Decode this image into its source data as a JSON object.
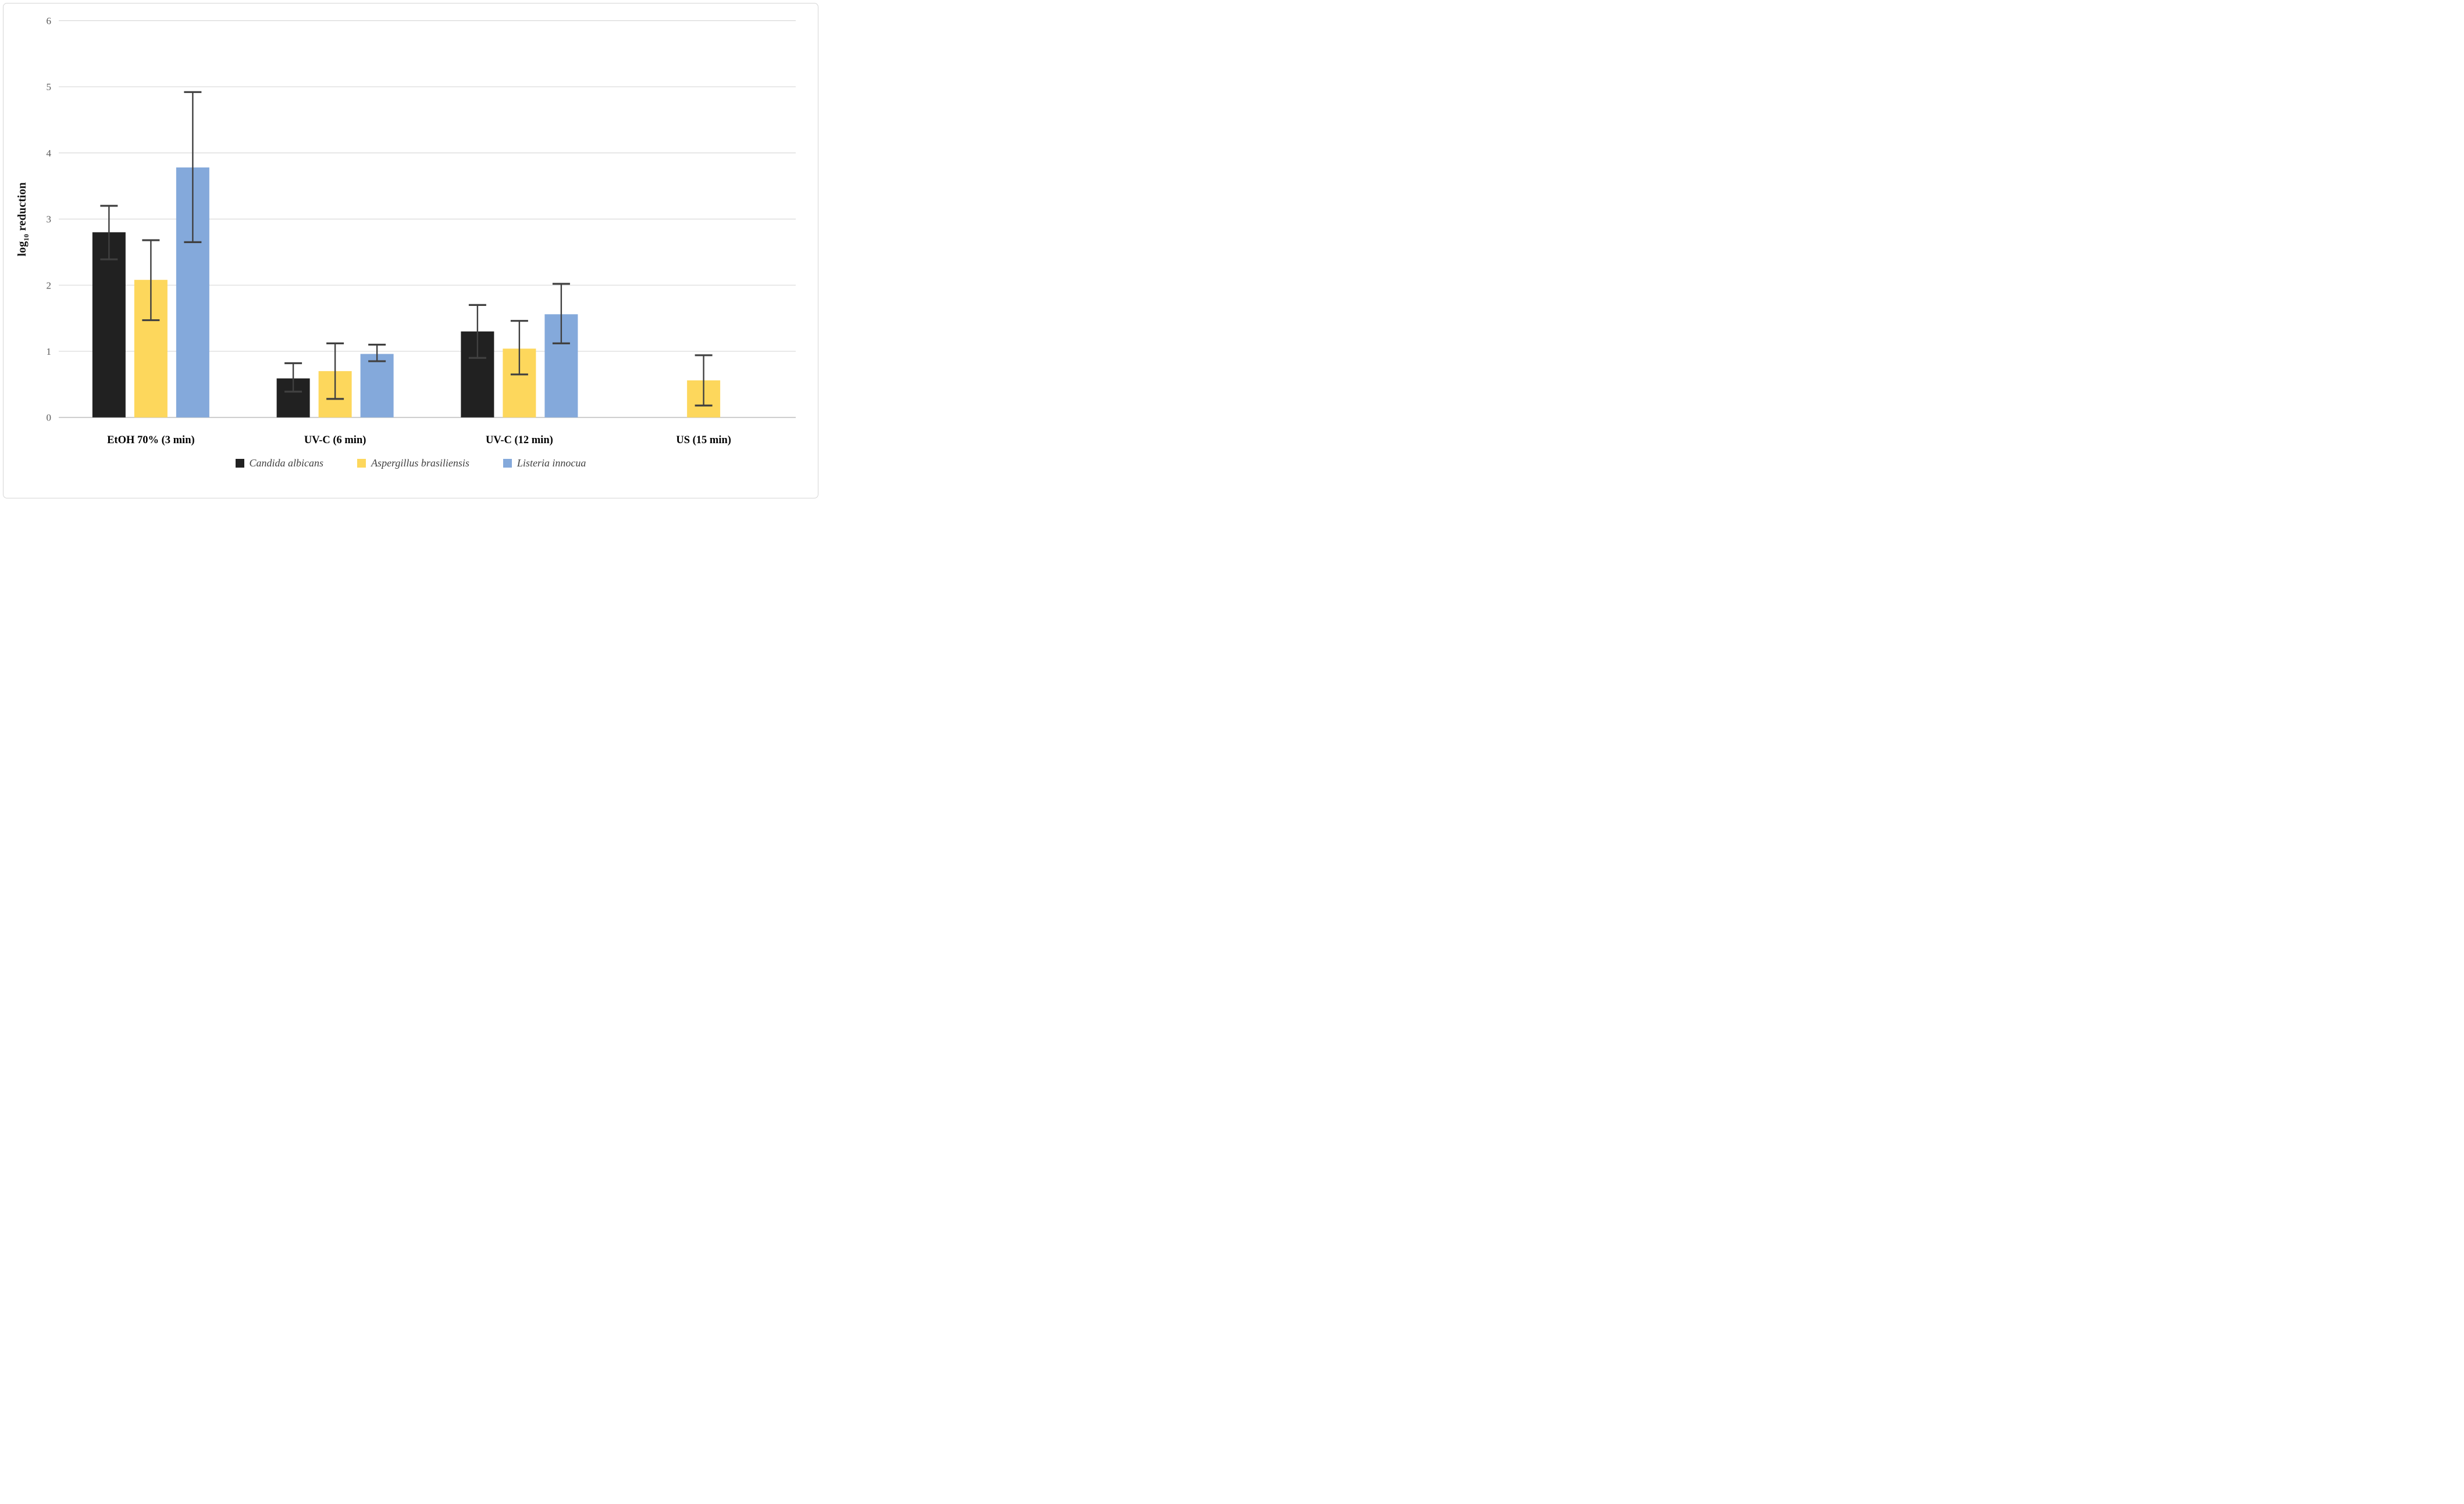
{
  "chart_data": {
    "type": "bar",
    "title": "",
    "ylabel_parts": {
      "pre": "log",
      "sub": "10",
      "post": " reduction"
    },
    "ylim": [
      0,
      6
    ],
    "yticks": [
      0,
      1,
      2,
      3,
      4,
      5,
      6
    ],
    "grid": true,
    "legend_position": "bottom",
    "categories": [
      "EtOH 70% (3 min)",
      "UV-C (6 min)",
      "UV-C (12 min)",
      "US (15 min)"
    ],
    "series": [
      {
        "name": "Candida albicans",
        "color": "#212121",
        "values": [
          2.8,
          0.59,
          1.3,
          null
        ],
        "err_low": [
          2.39,
          0.39,
          0.9,
          null
        ],
        "err_high": [
          3.2,
          0.82,
          1.7,
          null
        ]
      },
      {
        "name": "Aspergillus brasiliensis",
        "color": "#FDD75C",
        "values": [
          2.08,
          0.7,
          1.04,
          0.56
        ],
        "err_low": [
          1.47,
          0.28,
          0.65,
          0.18
        ],
        "err_high": [
          2.68,
          1.12,
          1.46,
          0.94
        ]
      },
      {
        "name": "Listeria innocua",
        "color": "#84A9DB",
        "values": [
          3.78,
          0.96,
          1.56,
          null
        ],
        "err_low": [
          2.65,
          0.85,
          1.12,
          null
        ],
        "err_high": [
          4.92,
          1.1,
          2.02,
          null
        ]
      }
    ],
    "colors": {
      "gridline": "#d9d9d9",
      "zero_line": "#c0c0c0",
      "error_bar": "#404040",
      "tick_text": "#595959",
      "category_text": "#000000"
    }
  }
}
